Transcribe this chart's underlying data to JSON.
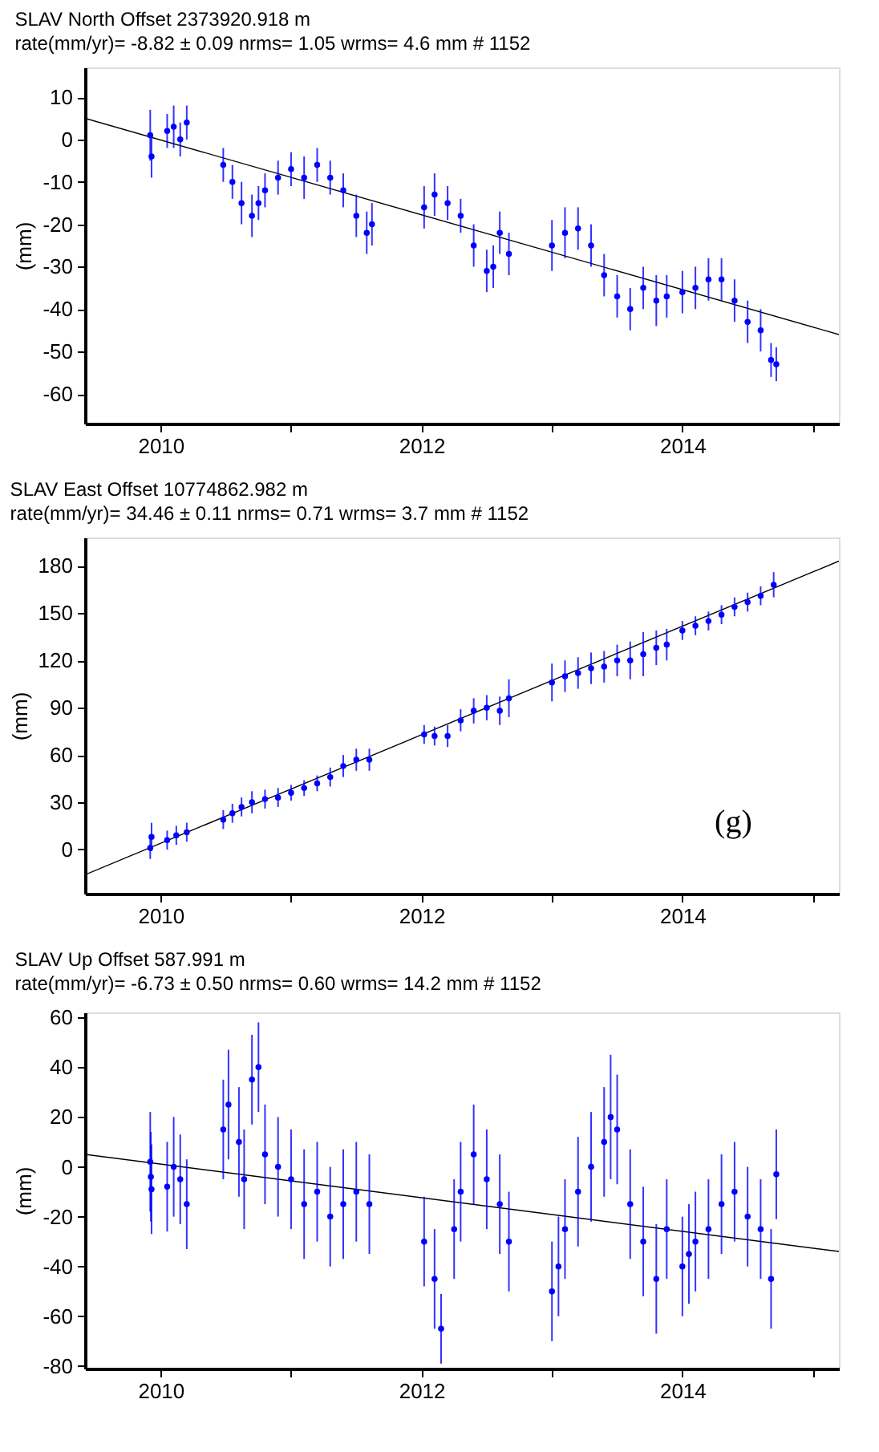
{
  "chart_data": [
    {
      "type": "scatter",
      "title": "SLAV  North Offset   2373920.918 m",
      "subtitle": "rate(mm/yr)=   -8.82 ± 0.09  nrms=  1.05  wrms=   4.6 mm # 1152",
      "ylabel": "(mm)",
      "grid": false,
      "xlim": [
        2009.42,
        2015.2
      ],
      "xticks": [
        2010,
        {
          "value": 2011,
          "label": null
        },
        2012,
        {
          "value": 2013,
          "label": null
        },
        2014,
        {
          "value": 2015,
          "label": null
        }
      ],
      "ylim": [
        -67,
        17
      ],
      "yticks": [
        -60,
        -50,
        -40,
        -30,
        -20,
        -10,
        0,
        10
      ],
      "series": [
        {
          "color": "#0000ff",
          "marker": "circle",
          "x": [
            2009.92,
            2009.93,
            2010.05,
            2010.1,
            2010.15,
            2010.2,
            2010.48,
            2010.55,
            2010.62,
            2010.7,
            2010.75,
            2010.8,
            2010.9,
            2011.0,
            2011.1,
            2011.2,
            2011.3,
            2011.4,
            2011.5,
            2011.58,
            2011.62,
            2012.02,
            2012.1,
            2012.2,
            2012.3,
            2012.4,
            2012.5,
            2012.55,
            2012.6,
            2012.67,
            2013.0,
            2013.1,
            2013.2,
            2013.3,
            2013.4,
            2013.5,
            2013.6,
            2013.7,
            2013.8,
            2013.88,
            2014.0,
            2014.1,
            2014.2,
            2014.3,
            2014.4,
            2014.5,
            2014.6,
            2014.68,
            2014.72
          ],
          "values": [
            1,
            -4,
            2,
            3,
            0,
            4,
            -6,
            -10,
            -15,
            -18,
            -15,
            -12,
            -9,
            -7,
            -9,
            -6,
            -9,
            -12,
            -18,
            -22,
            -20,
            -16,
            -13,
            -15,
            -18,
            -25,
            -31,
            -30,
            -22,
            -27,
            -25,
            -22,
            -21,
            -25,
            -32,
            -37,
            -40,
            -35,
            -38,
            -37,
            -36,
            -35,
            -33,
            -33,
            -38,
            -43,
            -45,
            -52,
            -53
          ],
          "errors": [
            6,
            5,
            4,
            5,
            4,
            4,
            4,
            4,
            5,
            5,
            4,
            4,
            4,
            4,
            5,
            4,
            4,
            4,
            5,
            5,
            5,
            5,
            5,
            4,
            4,
            5,
            5,
            5,
            5,
            5,
            6,
            6,
            5,
            5,
            5,
            5,
            5,
            5,
            6,
            5,
            5,
            5,
            5,
            5,
            5,
            5,
            5,
            4,
            4
          ]
        },
        {
          "type": "line",
          "color": "#000000",
          "x": [
            2009.42,
            2015.2
          ],
          "values": [
            5,
            -46
          ]
        }
      ]
    },
    {
      "type": "scatter",
      "title": "SLAV  East Offset  10774862.982 m",
      "subtitle": "rate(mm/yr)=   34.46 ± 0.11  nrms=  0.71  wrms=   3.7 mm # 1152",
      "ylabel": "(mm)",
      "grid": false,
      "annotations": [
        "(g)"
      ],
      "xlim": [
        2009.42,
        2015.2
      ],
      "xticks": [
        2010,
        {
          "value": 2011,
          "label": null
        },
        2012,
        {
          "value": 2013,
          "label": null
        },
        2014,
        {
          "value": 2015,
          "label": null
        }
      ],
      "ylim": [
        -28,
        198
      ],
      "yticks": [
        0,
        30,
        60,
        90,
        120,
        150,
        180
      ],
      "series": [
        {
          "color": "#0000ff",
          "marker": "circle",
          "x": [
            2009.92,
            2009.93,
            2010.05,
            2010.12,
            2010.2,
            2010.48,
            2010.55,
            2010.62,
            2010.7,
            2010.8,
            2010.9,
            2011.0,
            2011.1,
            2011.2,
            2011.3,
            2011.4,
            2011.5,
            2011.6,
            2012.02,
            2012.1,
            2012.2,
            2012.3,
            2012.4,
            2012.5,
            2012.6,
            2012.67,
            2013.0,
            2013.1,
            2013.2,
            2013.3,
            2013.4,
            2013.5,
            2013.6,
            2013.7,
            2013.8,
            2013.88,
            2014.0,
            2014.1,
            2014.2,
            2014.3,
            2014.4,
            2014.5,
            2014.6,
            2014.7
          ],
          "values": [
            1,
            8,
            6,
            9,
            11,
            19,
            23,
            27,
            30,
            32,
            33,
            36,
            39,
            42,
            46,
            53,
            57,
            57,
            73,
            72,
            72,
            82,
            88,
            90,
            88,
            96,
            106,
            110,
            112,
            115,
            116,
            120,
            120,
            124,
            128,
            130,
            139,
            142,
            145,
            149,
            154,
            157,
            161,
            168
          ],
          "errors": [
            7,
            9,
            6,
            6,
            6,
            6,
            6,
            6,
            7,
            6,
            6,
            5,
            5,
            5,
            6,
            7,
            7,
            7,
            6,
            6,
            7,
            7,
            8,
            8,
            9,
            12,
            12,
            10,
            10,
            10,
            10,
            10,
            12,
            14,
            11,
            10,
            6,
            6,
            6,
            6,
            6,
            6,
            6,
            8
          ]
        },
        {
          "type": "line",
          "color": "#000000",
          "x": [
            2009.42,
            2015.2
          ],
          "values": [
            -16,
            183
          ]
        }
      ]
    },
    {
      "type": "scatter",
      "title": "SLAV  Up Offset       587.991 m",
      "subtitle": "rate(mm/yr)=   -6.73 ± 0.50  nrms=  0.60  wrms=  14.2 mm # 1152",
      "ylabel": "(mm)",
      "grid": false,
      "xlim": [
        2009.42,
        2015.2
      ],
      "xticks": [
        2010,
        {
          "value": 2011,
          "label": null
        },
        2012,
        {
          "value": 2013,
          "label": null
        },
        2014,
        {
          "value": 2015,
          "label": null
        }
      ],
      "ylim": [
        -81,
        62
      ],
      "yticks": [
        -80,
        -60,
        -40,
        -20,
        0,
        20,
        40,
        60
      ],
      "series": [
        {
          "color": "#0000ff",
          "marker": "circle",
          "x": [
            2009.92,
            2009.925,
            2009.93,
            2010.05,
            2010.1,
            2010.15,
            2010.2,
            2010.48,
            2010.52,
            2010.6,
            2010.64,
            2010.7,
            2010.75,
            2010.8,
            2010.9,
            2011.0,
            2011.1,
            2011.2,
            2011.3,
            2011.4,
            2011.5,
            2011.6,
            2012.02,
            2012.1,
            2012.15,
            2012.25,
            2012.3,
            2012.4,
            2012.5,
            2012.6,
            2012.67,
            2013.0,
            2013.05,
            2013.1,
            2013.2,
            2013.3,
            2013.4,
            2013.45,
            2013.5,
            2013.6,
            2013.7,
            2013.8,
            2013.88,
            2014.0,
            2014.05,
            2014.1,
            2014.2,
            2014.3,
            2014.4,
            2014.5,
            2014.6,
            2014.68,
            2014.72
          ],
          "values": [
            2,
            -4,
            -9,
            -8,
            0,
            -5,
            -15,
            15,
            25,
            10,
            -5,
            35,
            40,
            5,
            0,
            -5,
            -15,
            -10,
            -20,
            -15,
            -10,
            -15,
            -30,
            -45,
            -65,
            -25,
            -10,
            5,
            -5,
            -15,
            -30,
            -50,
            -40,
            -25,
            -10,
            0,
            10,
            20,
            15,
            -15,
            -30,
            -45,
            -25,
            -40,
            -35,
            -30,
            -25,
            -15,
            -10,
            -20,
            -25,
            -45,
            -3
          ],
          "errors": [
            20,
            18,
            18,
            18,
            20,
            18,
            18,
            20,
            22,
            22,
            20,
            18,
            18,
            20,
            20,
            20,
            22,
            20,
            20,
            22,
            20,
            20,
            18,
            20,
            14,
            20,
            20,
            20,
            20,
            20,
            20,
            20,
            20,
            20,
            22,
            22,
            22,
            25,
            22,
            22,
            22,
            22,
            20,
            20,
            20,
            20,
            20,
            20,
            20,
            20,
            20,
            20,
            18
          ]
        },
        {
          "type": "line",
          "color": "#000000",
          "x": [
            2009.42,
            2015.2
          ],
          "values": [
            5,
            -34
          ]
        }
      ]
    }
  ]
}
